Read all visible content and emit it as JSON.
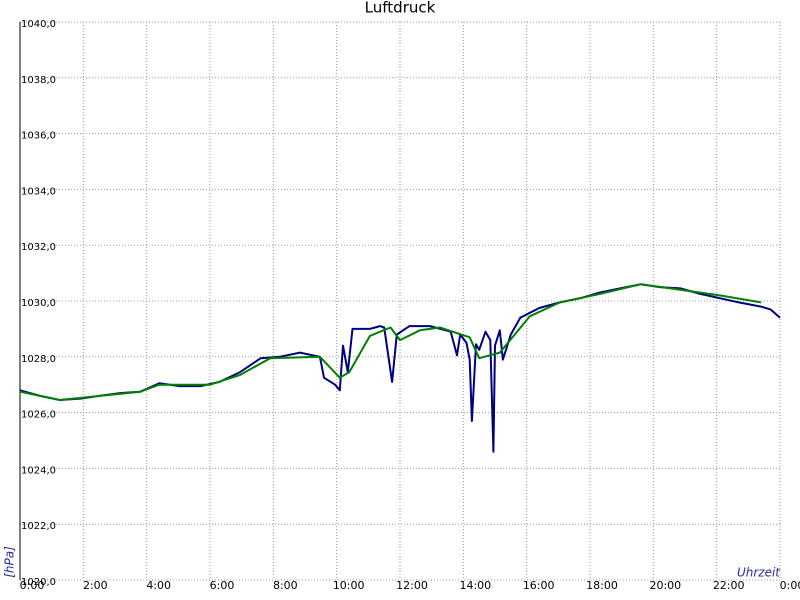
{
  "chart_data": {
    "type": "line",
    "title": "Luftdruck",
    "y_label": "[hPa]",
    "x_label": "Uhrzeit",
    "xlim": [
      0,
      24
    ],
    "ylim": [
      1020,
      1040
    ],
    "xticks": [
      {
        "value": 0,
        "label": "0:00"
      },
      {
        "value": 2,
        "label": "2:00"
      },
      {
        "value": 4,
        "label": "4:00"
      },
      {
        "value": 6,
        "label": "6:00"
      },
      {
        "value": 8,
        "label": "8:00"
      },
      {
        "value": 10,
        "label": "10:00"
      },
      {
        "value": 12,
        "label": "12:00"
      },
      {
        "value": 14,
        "label": "14:00"
      },
      {
        "value": 16,
        "label": "16:00"
      },
      {
        "value": 18,
        "label": "18:00"
      },
      {
        "value": 20,
        "label": "20:00"
      },
      {
        "value": 22,
        "label": "22:00"
      },
      {
        "value": 24,
        "label": "0:00"
      }
    ],
    "yticks": [
      {
        "value": 1020,
        "label": "1020,0"
      },
      {
        "value": 1022,
        "label": "1022,0"
      },
      {
        "value": 1024,
        "label": "1024,0"
      },
      {
        "value": 1026,
        "label": "1026,0"
      },
      {
        "value": 1028,
        "label": "1028,0"
      },
      {
        "value": 1030,
        "label": "1030,0"
      },
      {
        "value": 1032,
        "label": "1032,0"
      },
      {
        "value": 1034,
        "label": "1034,0"
      },
      {
        "value": 1036,
        "label": "1036,0"
      },
      {
        "value": 1038,
        "label": "1038,0"
      },
      {
        "value": 1040,
        "label": "1040,0"
      }
    ],
    "grid": true,
    "series": [
      {
        "color": "#000080",
        "x": [
          0,
          0.63,
          1.26,
          1.9,
          2.5,
          3.16,
          3.8,
          4.4,
          5.05,
          5.7,
          6.3,
          6.95,
          7.6,
          8.2,
          8.84,
          9.47,
          9.6,
          9.95,
          10.1,
          10.2,
          10.35,
          10.5,
          10.74,
          11.05,
          11.37,
          11.5,
          11.75,
          11.9,
          12.3,
          12.95,
          13.6,
          13.8,
          13.9,
          14.1,
          14.2,
          14.27,
          14.4,
          14.5,
          14.7,
          14.85,
          14.95,
          15.0,
          15.15,
          15.25,
          15.5,
          15.8,
          16.4,
          17.05,
          17.7,
          18.3,
          18.95,
          19.6,
          20.2,
          20.85,
          21.5,
          22.1,
          22.7,
          23.4,
          23.7,
          24
        ],
        "values": [
          1026.8,
          1026.6,
          1026.45,
          1026.5,
          1026.6,
          1026.7,
          1026.75,
          1027.05,
          1026.95,
          1026.95,
          1027.1,
          1027.45,
          1027.95,
          1028.0,
          1028.15,
          1028.0,
          1027.25,
          1027.0,
          1026.8,
          1028.4,
          1027.45,
          1029.0,
          1029.0,
          1029.0,
          1029.1,
          1029.05,
          1027.1,
          1028.8,
          1029.1,
          1029.1,
          1028.9,
          1028.05,
          1028.8,
          1028.5,
          1027.9,
          1025.7,
          1028.45,
          1028.25,
          1028.9,
          1028.6,
          1024.6,
          1028.4,
          1028.95,
          1027.9,
          1028.8,
          1029.4,
          1029.75,
          1029.95,
          1030.1,
          1030.3,
          1030.45,
          1030.6,
          1030.5,
          1030.45,
          1030.25,
          1030.1,
          1029.95,
          1029.8,
          1029.7,
          1029.4
        ]
      },
      {
        "color": "#008000",
        "x": [
          0,
          1.26,
          3.8,
          4.4,
          6,
          6.95,
          7.9,
          9.47,
          10.1,
          10.4,
          11.05,
          11.7,
          12.0,
          12.63,
          13.26,
          14.2,
          14.5,
          15.15,
          16.1,
          17.05,
          18.3,
          19.6,
          20.85,
          22.1,
          23.4
        ],
        "values": [
          1026.75,
          1026.45,
          1026.75,
          1027.0,
          1027.0,
          1027.35,
          1027.95,
          1028.0,
          1027.25,
          1027.45,
          1028.75,
          1029.05,
          1028.6,
          1028.95,
          1029.05,
          1028.7,
          1027.95,
          1028.15,
          1029.45,
          1029.95,
          1030.25,
          1030.6,
          1030.4,
          1030.2,
          1029.95
        ]
      }
    ]
  }
}
